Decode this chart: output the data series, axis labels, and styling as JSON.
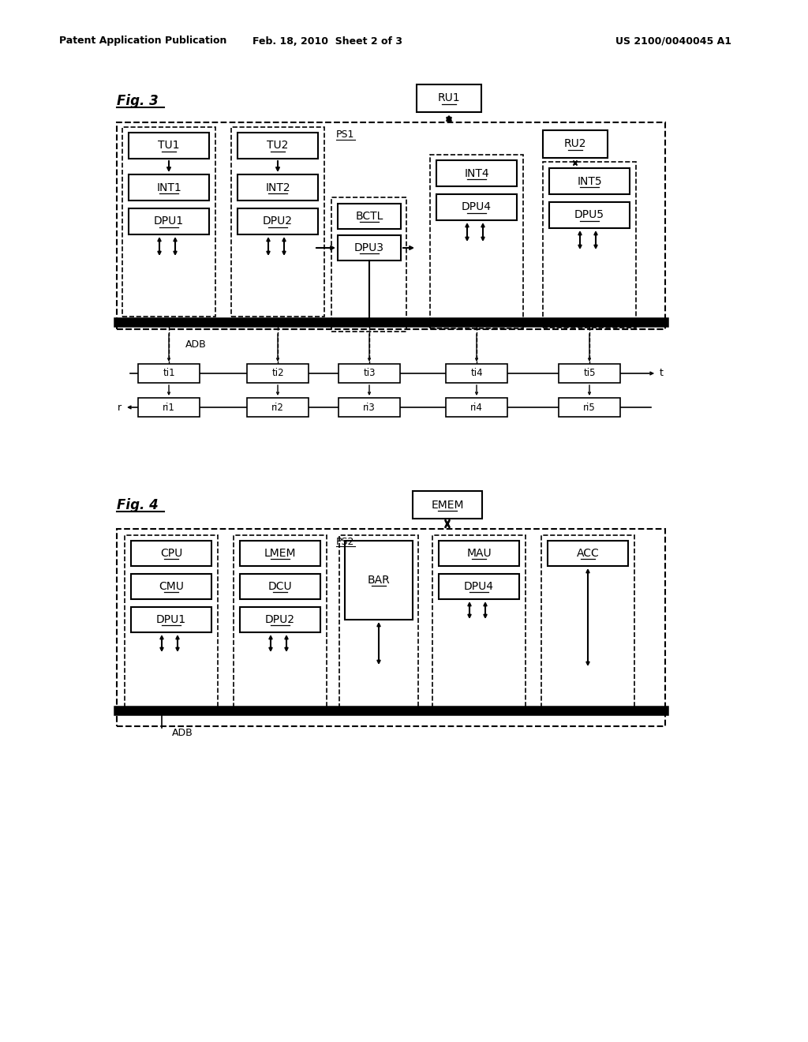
{
  "header_left": "Patent Application Publication",
  "header_center": "Feb. 18, 2010  Sheet 2 of 3",
  "header_right": "US 2100/0040045 A1",
  "background": "#ffffff"
}
